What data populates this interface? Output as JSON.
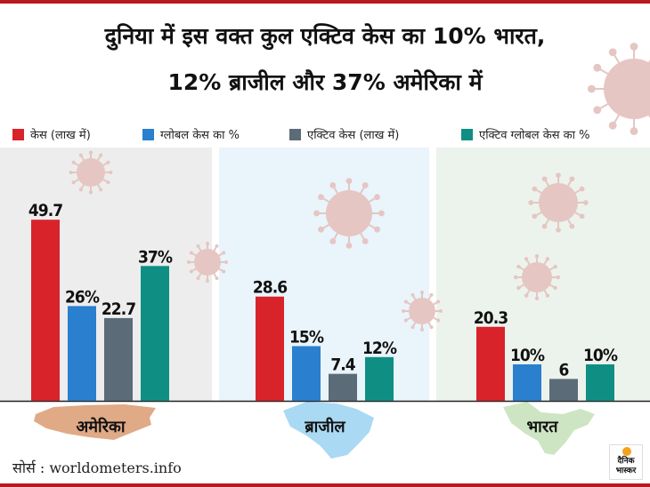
{
  "title": {
    "line1": "दुनिया में इस वक्त कुल एक्टिव केस का 10% भारत,",
    "line2": "12% ब्राजील और 37% अमेरिका में"
  },
  "colors": {
    "red": "#d8232a",
    "blue": "#2a7fcf",
    "grey": "#5b6b77",
    "teal": "#0f8f83",
    "panel_usa": "#ededed",
    "panel_brazil": "#e9f4fb",
    "panel_india": "#ecf3ec",
    "map_usa": "#e0aa86",
    "map_brazil": "#a9d9f3",
    "map_india": "#cde5c2",
    "virus": "#e5c6c2",
    "accent": "#b7191f"
  },
  "legend": [
    {
      "label": "केस (लाख में)",
      "color": "#d8232a"
    },
    {
      "label": "ग्लोबल केस का %",
      "color": "#2a7fcf"
    },
    {
      "label": "एक्टिव केस (लाख में)",
      "color": "#5b6b77"
    },
    {
      "label": "एक्टिव ग्लोबल केस का %",
      "color": "#0f8f83"
    }
  ],
  "chart_data": {
    "type": "bar",
    "categories": [
      "अमेरिका",
      "ब्राजील",
      "भारत"
    ],
    "series": [
      {
        "name": "केस (लाख में)",
        "values": [
          49.7,
          28.6,
          20.3
        ],
        "labels": [
          "49.7",
          "28.6",
          "20.3"
        ]
      },
      {
        "name": "ग्लोबल केस का %",
        "values": [
          26,
          15,
          10
        ],
        "labels": [
          "26%",
          "15%",
          "10%"
        ]
      },
      {
        "name": "एक्टिव केस (लाख में)",
        "values": [
          22.7,
          7.4,
          6
        ],
        "labels": [
          "22.7",
          "7.4",
          "6"
        ]
      },
      {
        "name": "एक्टिव ग्लोबल केस का %",
        "values": [
          37,
          12,
          10
        ],
        "labels": [
          "37%",
          "12%",
          "10%"
        ]
      }
    ],
    "ylim": [
      0,
      50
    ]
  },
  "source": "सोर्स : worldometers.info",
  "logo": {
    "line1": "दैनिक",
    "line2": "भास्कर"
  }
}
